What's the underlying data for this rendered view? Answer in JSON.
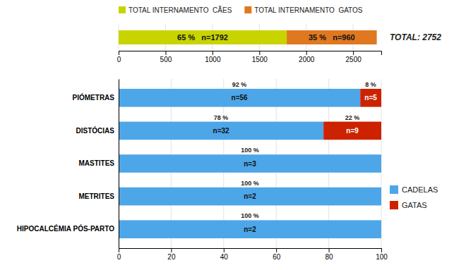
{
  "chart_data": [
    {
      "type": "bar",
      "orientation": "horizontal",
      "stacked": true,
      "categories": [
        null
      ],
      "series": [
        {
          "name": "TOTAL INTERNAMENTO  CÃES",
          "color": "#c8d400",
          "values": [
            1792
          ],
          "value_labels": [
            "65 %   n=1792"
          ]
        },
        {
          "name": "TOTAL INTERNAMENTO  GATOS",
          "color": "#e07820",
          "values": [
            960
          ],
          "value_labels": [
            "35 %   n=960"
          ]
        }
      ],
      "data_labels": true,
      "annotations": [
        "TOTAL: 2752"
      ],
      "xlim": [
        0,
        2800
      ],
      "xticks": [
        0,
        500,
        1000,
        1500,
        2000,
        2500
      ],
      "grid": true,
      "legend": "top",
      "tick_labels": "x"
    },
    {
      "type": "bar",
      "orientation": "horizontal",
      "stacked": true,
      "categories": [
        "HIPOCALCÉMIA PÓS-PARTO",
        "METRITES",
        "MASTITES",
        "DISTÓCIAS",
        "PIÓMETRAS"
      ],
      "series": [
        {
          "name": "CADELAS",
          "color": "#4da6e8",
          "values": [
            100,
            100,
            100,
            78,
            92
          ],
          "value_labels": [
            "100 %",
            "100 %",
            "100 %",
            "78 %",
            "92 %"
          ],
          "counts": [
            2,
            2,
            3,
            32,
            56
          ],
          "count_labels": [
            "n=2",
            "n=2",
            "n=3",
            "n=32",
            "n=56"
          ]
        },
        {
          "name": "GATAS",
          "color": "#cc2200",
          "values": [
            0,
            0,
            0,
            22,
            8
          ],
          "value_labels": [
            null,
            null,
            null,
            "22 %",
            "8 %"
          ],
          "counts": [
            null,
            null,
            null,
            9,
            5
          ],
          "count_labels": [
            null,
            null,
            null,
            "n=9",
            "n=5"
          ]
        }
      ],
      "data_labels": true,
      "xlim": [
        0,
        100
      ],
      "xticks": [
        0,
        20,
        40,
        60,
        80,
        100
      ],
      "grid": true,
      "legend": "right"
    }
  ]
}
